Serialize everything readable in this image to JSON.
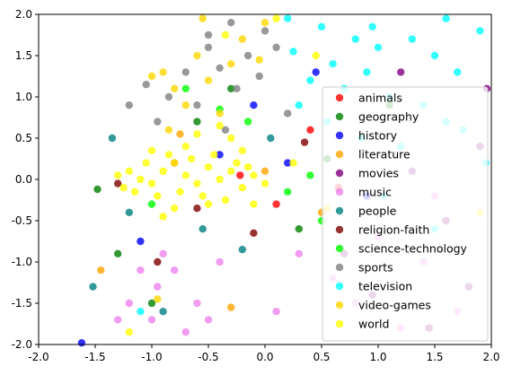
{
  "chart_data": {
    "type": "scatter",
    "title": "",
    "xlabel": "",
    "ylabel": "",
    "xlim": [
      -2.0,
      2.0
    ],
    "ylim": [
      -2.0,
      2.0
    ],
    "xticks": [
      "-2.0",
      "-1.5",
      "-1.0",
      "-0.5",
      "0.0",
      "0.5",
      "1.0",
      "1.5",
      "2.0"
    ],
    "yticks": [
      "2.0",
      "1.5",
      "1.0",
      "0.5",
      "0.0",
      "-0.5",
      "-1.0",
      "-1.5",
      "-2.0"
    ],
    "grid": false,
    "legend_position": "lower-right",
    "series": [
      {
        "name": "animals",
        "color": "#ff0000",
        "points": [
          [
            -0.22,
            0.05
          ],
          [
            0.1,
            -0.3
          ],
          [
            0.4,
            0.6
          ],
          [
            -0.8,
            0.2
          ],
          [
            0.65,
            -0.1
          ]
        ]
      },
      {
        "name": "geography",
        "color": "#008000",
        "points": [
          [
            -1.48,
            -0.12
          ],
          [
            -1.0,
            -1.5
          ],
          [
            -0.6,
            0.7
          ],
          [
            0.3,
            -0.6
          ],
          [
            -1.3,
            -0.9
          ],
          [
            0.55,
            0.25
          ],
          [
            -0.3,
            1.1
          ],
          [
            1.1,
            0.9
          ]
        ]
      },
      {
        "name": "history",
        "color": "#0000ff",
        "points": [
          [
            -1.62,
            -1.98
          ],
          [
            -0.1,
            0.9
          ],
          [
            0.45,
            1.3
          ],
          [
            -0.4,
            0.3
          ],
          [
            -1.1,
            -0.75
          ],
          [
            0.9,
            -0.2
          ],
          [
            0.2,
            0.2
          ]
        ]
      },
      {
        "name": "literature",
        "color": "#ffa500",
        "points": [
          [
            -1.45,
            -1.1
          ],
          [
            -0.3,
            -1.55
          ],
          [
            0.0,
            0.1
          ],
          [
            0.5,
            -0.4
          ],
          [
            -0.75,
            0.55
          ]
        ]
      },
      {
        "name": "movies",
        "color": "#800080",
        "points": [
          [
            1.96,
            1.1
          ],
          [
            1.8,
            -1.3
          ],
          [
            1.6,
            -0.5
          ],
          [
            1.2,
            1.3
          ],
          [
            0.95,
            -1.4
          ],
          [
            1.45,
            -1.8
          ],
          [
            1.9,
            0.4
          ],
          [
            0.7,
            -0.9
          ],
          [
            1.3,
            0.1
          ]
        ]
      },
      {
        "name": "music",
        "color": "#ee82ee",
        "points": [
          [
            -1.2,
            -1.5
          ],
          [
            -1.0,
            -1.7
          ],
          [
            -0.8,
            -1.1
          ],
          [
            -0.6,
            -1.5
          ],
          [
            -0.95,
            -1.3
          ],
          [
            -0.7,
            -1.85
          ],
          [
            -1.1,
            -1.1
          ],
          [
            -0.4,
            -1.0
          ],
          [
            0.1,
            -1.6
          ],
          [
            -1.3,
            -1.7
          ],
          [
            -0.9,
            -0.9
          ],
          [
            -0.5,
            -1.7
          ],
          [
            0.3,
            -0.9
          ],
          [
            0.8,
            -1.5
          ],
          [
            1.4,
            -1.0
          ],
          [
            1.7,
            -1.6
          ],
          [
            1.0,
            -0.7
          ],
          [
            1.5,
            -0.2
          ],
          [
            0.6,
            -1.2
          ],
          [
            1.2,
            -1.8
          ]
        ]
      },
      {
        "name": "people",
        "color": "#008080",
        "points": [
          [
            -1.52,
            -1.3
          ],
          [
            -1.2,
            -0.4
          ],
          [
            -0.9,
            -1.6
          ],
          [
            -0.55,
            -0.6
          ],
          [
            0.05,
            0.5
          ],
          [
            -1.35,
            0.5
          ],
          [
            -0.2,
            -0.85
          ]
        ]
      },
      {
        "name": "religion-faith",
        "color": "#800000",
        "points": [
          [
            -0.1,
            -0.65
          ],
          [
            -0.95,
            -1.0
          ],
          [
            0.35,
            0.45
          ],
          [
            -0.6,
            -0.35
          ],
          [
            -1.3,
            -0.05
          ]
        ]
      },
      {
        "name": "science-technology",
        "color": "#00ff00",
        "points": [
          [
            0.5,
            -0.5
          ],
          [
            -0.7,
            1.1
          ],
          [
            -0.4,
            0.85
          ],
          [
            0.2,
            -0.15
          ],
          [
            -1.0,
            -0.3
          ],
          [
            0.4,
            0.05
          ],
          [
            -0.15,
            0.7
          ]
        ]
      },
      {
        "name": "sports",
        "color": "#808080",
        "points": [
          [
            -0.3,
            1.9
          ],
          [
            -0.5,
            1.6
          ],
          [
            -0.15,
            1.5
          ],
          [
            -0.7,
            1.3
          ],
          [
            -0.85,
            1.0
          ],
          [
            -0.4,
            1.35
          ],
          [
            0.0,
            1.8
          ],
          [
            -0.6,
            0.9
          ],
          [
            -0.25,
            1.1
          ],
          [
            0.1,
            1.6
          ],
          [
            -0.95,
            0.7
          ],
          [
            -0.5,
            1.75
          ],
          [
            -0.05,
            1.25
          ],
          [
            -1.2,
            0.9
          ],
          [
            -1.05,
            1.15
          ],
          [
            0.2,
            0.8
          ],
          [
            -0.35,
            0.6
          ]
        ]
      },
      {
        "name": "television",
        "color": "#00ffff",
        "points": [
          [
            0.2,
            1.95
          ],
          [
            0.5,
            1.85
          ],
          [
            0.8,
            1.7
          ],
          [
            1.0,
            1.6
          ],
          [
            1.3,
            1.7
          ],
          [
            0.6,
            1.4
          ],
          [
            0.9,
            1.3
          ],
          [
            1.5,
            1.5
          ],
          [
            1.7,
            1.3
          ],
          [
            1.9,
            1.8
          ],
          [
            0.4,
            1.2
          ],
          [
            0.7,
            1.1
          ],
          [
            1.1,
            1.0
          ],
          [
            1.4,
            0.9
          ],
          [
            1.6,
            0.7
          ],
          [
            0.3,
            0.9
          ],
          [
            0.55,
            0.7
          ],
          [
            0.85,
            0.5
          ],
          [
            1.2,
            0.4
          ],
          [
            1.75,
            0.6
          ],
          [
            1.95,
            0.2
          ],
          [
            1.05,
            -0.2
          ],
          [
            1.5,
            -0.6
          ],
          [
            0.25,
            1.55
          ],
          [
            0.95,
            1.85
          ],
          [
            1.6,
            1.95
          ],
          [
            -1.1,
            -1.6
          ]
        ]
      },
      {
        "name": "video-games",
        "color": "#ffd700",
        "points": [
          [
            -0.9,
            1.3
          ],
          [
            -0.6,
            1.5
          ],
          [
            -0.8,
            1.1
          ],
          [
            -0.5,
            1.2
          ],
          [
            -0.3,
            1.4
          ],
          [
            -0.2,
            1.7
          ],
          [
            -1.0,
            1.25
          ],
          [
            -0.7,
            0.9
          ],
          [
            -0.4,
            0.8
          ],
          [
            -0.05,
            1.45
          ],
          [
            -0.55,
            1.95
          ],
          [
            0.0,
            1.9
          ],
          [
            -0.95,
            -1.45
          ],
          [
            0.55,
            -0.35
          ],
          [
            -0.85,
            0.6
          ]
        ]
      },
      {
        "name": "world",
        "color": "#ffff00",
        "points": [
          [
            -1.3,
            0.05
          ],
          [
            -1.2,
            0.1
          ],
          [
            -1.1,
            0.0
          ],
          [
            -1.0,
            -0.05
          ],
          [
            -0.9,
            0.1
          ],
          [
            -0.8,
            0.2
          ],
          [
            -0.7,
            0.05
          ],
          [
            -0.6,
            -0.05
          ],
          [
            -0.5,
            0.15
          ],
          [
            -0.4,
            0.0
          ],
          [
            -0.3,
            0.1
          ],
          [
            -0.2,
            -0.1
          ],
          [
            -0.1,
            0.05
          ],
          [
            -1.15,
            -0.15
          ],
          [
            -1.05,
            0.2
          ],
          [
            -0.95,
            -0.2
          ],
          [
            -0.85,
            0.3
          ],
          [
            -0.75,
            -0.15
          ],
          [
            -0.65,
            0.25
          ],
          [
            -0.55,
            -0.2
          ],
          [
            -0.45,
            0.3
          ],
          [
            -0.35,
            -0.25
          ],
          [
            -0.25,
            0.2
          ],
          [
            -0.15,
            0.15
          ],
          [
            0.0,
            -0.05
          ],
          [
            -1.25,
            -0.1
          ],
          [
            -0.7,
            0.4
          ],
          [
            -0.5,
            -0.3
          ],
          [
            -0.2,
            0.35
          ],
          [
            -0.6,
            0.55
          ],
          [
            -0.3,
            0.5
          ],
          [
            -1.0,
            0.35
          ],
          [
            -0.8,
            -0.35
          ],
          [
            0.25,
            0.2
          ],
          [
            0.45,
            1.5
          ],
          [
            -0.4,
            0.65
          ],
          [
            -1.2,
            -1.85
          ],
          [
            0.1,
            1.95
          ],
          [
            -0.35,
            1.75
          ],
          [
            1.9,
            -0.4
          ],
          [
            -0.9,
            -0.45
          ],
          [
            -0.1,
            -0.3
          ]
        ]
      }
    ]
  }
}
